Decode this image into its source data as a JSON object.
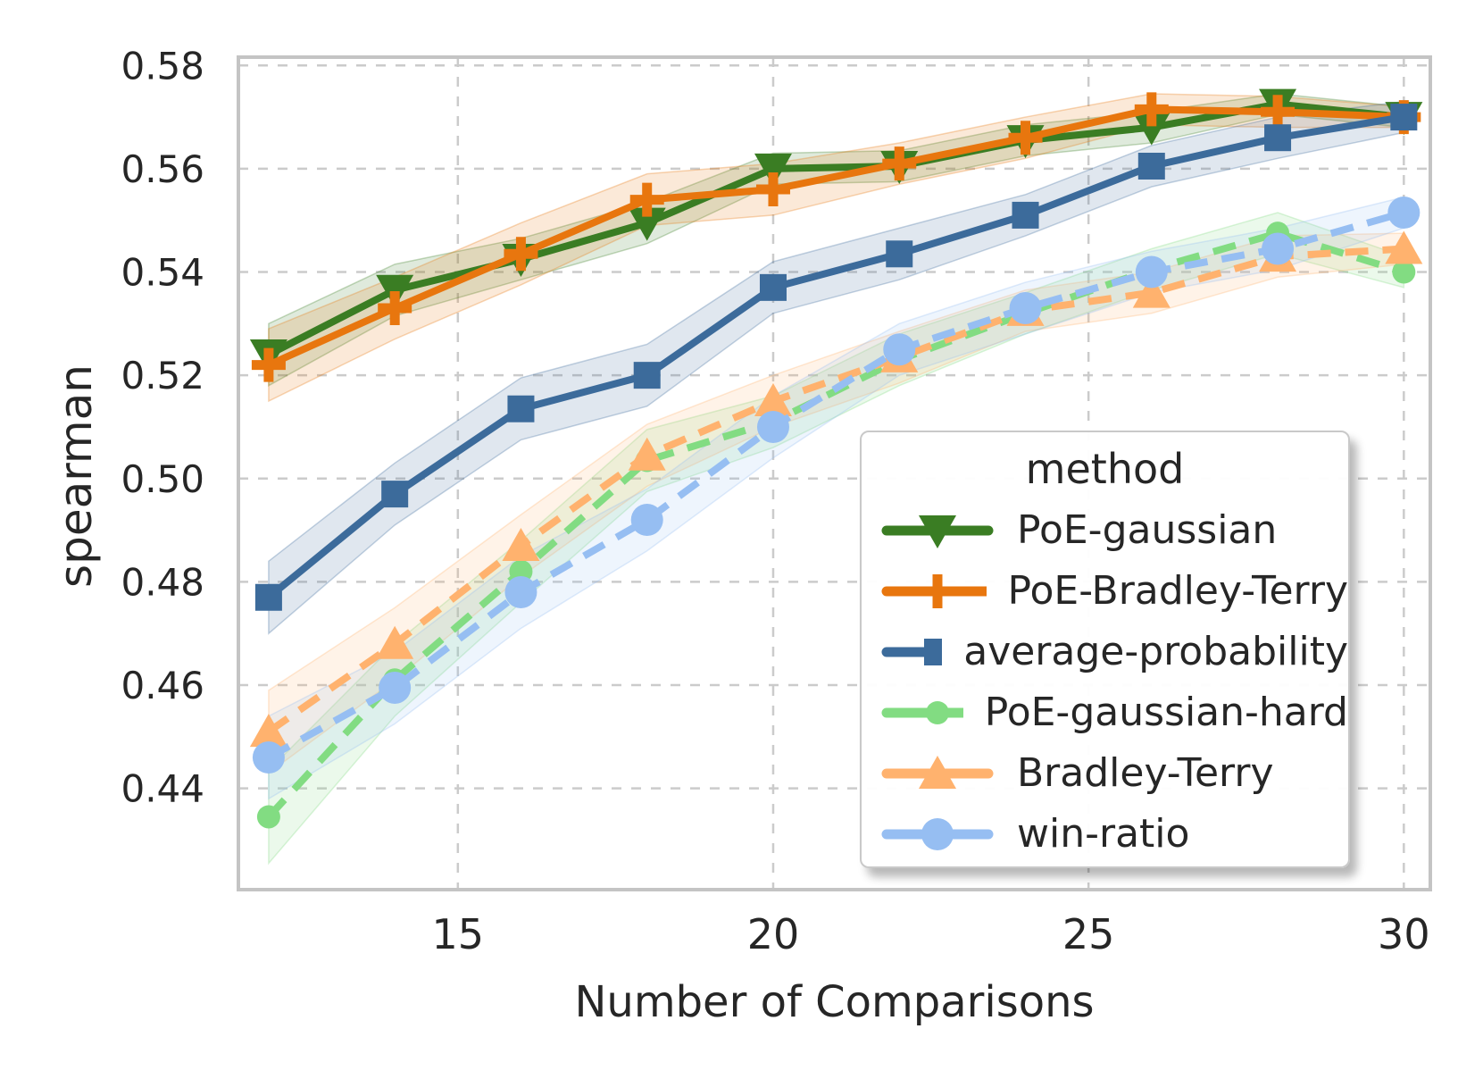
{
  "figure": {
    "xlabel": "Number of Comparisons",
    "ylabel": "spearman",
    "legend_title": "method"
  },
  "chart_data": {
    "type": "line",
    "title": "",
    "xlabel": "Number of Comparisons",
    "ylabel": "spearman",
    "grid": true,
    "grid_style": "dashed",
    "legend_position": "lower right inside",
    "legend_title": "method",
    "x": [
      12,
      14,
      16,
      18,
      20,
      22,
      24,
      26,
      28,
      30
    ],
    "xlim": [
      11.52,
      30.42
    ],
    "ylim": [
      0.4204,
      0.5816
    ],
    "xticks": [
      15,
      20,
      25,
      30
    ],
    "yticks": [
      0.44,
      0.46,
      0.48,
      0.5,
      0.52,
      0.54,
      0.56,
      0.58
    ],
    "series": [
      {
        "name": "PoE-gaussian",
        "color": "#3a7d23",
        "line": "solid",
        "marker": "triangle-down",
        "values": [
          0.524,
          0.5365,
          0.5425,
          0.5495,
          0.56,
          0.5605,
          0.5655,
          0.568,
          0.5725,
          0.57
        ],
        "ci": [
          0.006,
          0.005,
          0.004,
          0.004,
          0.003,
          0.003,
          0.003,
          0.003,
          0.002,
          0.002
        ]
      },
      {
        "name": "PoE-Bradley-Terry",
        "color": "#e8760e",
        "line": "solid",
        "marker": "plus",
        "values": [
          0.522,
          0.533,
          0.5435,
          0.554,
          0.556,
          0.561,
          0.566,
          0.5715,
          0.571,
          0.57
        ],
        "ci": [
          0.007,
          0.006,
          0.006,
          0.005,
          0.005,
          0.004,
          0.004,
          0.003,
          0.003,
          0.002
        ]
      },
      {
        "name": "average-probability",
        "color": "#3c6b9b",
        "line": "solid",
        "marker": "square",
        "values": [
          0.477,
          0.497,
          0.5135,
          0.52,
          0.537,
          0.5435,
          0.551,
          0.5605,
          0.566,
          0.57
        ],
        "ci": [
          0.007,
          0.006,
          0.006,
          0.006,
          0.005,
          0.005,
          0.004,
          0.004,
          0.004,
          0.003
        ]
      },
      {
        "name": "PoE-gaussian-hard",
        "color": "#82dc82",
        "line": "dashed",
        "marker": "circle-small",
        "values": [
          0.4345,
          0.461,
          0.482,
          0.5035,
          0.511,
          0.523,
          0.532,
          0.5405,
          0.5475,
          0.54
        ],
        "ci": [
          0.009,
          0.007,
          0.006,
          0.006,
          0.005,
          0.005,
          0.004,
          0.004,
          0.004,
          0.003
        ]
      },
      {
        "name": "Bradley-Terry",
        "color": "#ffb26e",
        "line": "dashed",
        "marker": "triangle-up",
        "values": [
          0.451,
          0.468,
          0.487,
          0.5045,
          0.515,
          0.5235,
          0.5325,
          0.536,
          0.543,
          0.5445
        ],
        "ci": [
          0.008,
          0.007,
          0.006,
          0.006,
          0.005,
          0.005,
          0.004,
          0.004,
          0.004,
          0.003
        ]
      },
      {
        "name": "win-ratio",
        "color": "#96bef2",
        "line": "dashed",
        "marker": "circle",
        "values": [
          0.446,
          0.4595,
          0.478,
          0.492,
          0.51,
          0.525,
          0.533,
          0.54,
          0.5445,
          0.5515
        ],
        "ci": [
          0.008,
          0.007,
          0.007,
          0.006,
          0.006,
          0.005,
          0.005,
          0.004,
          0.004,
          0.003
        ]
      }
    ]
  }
}
